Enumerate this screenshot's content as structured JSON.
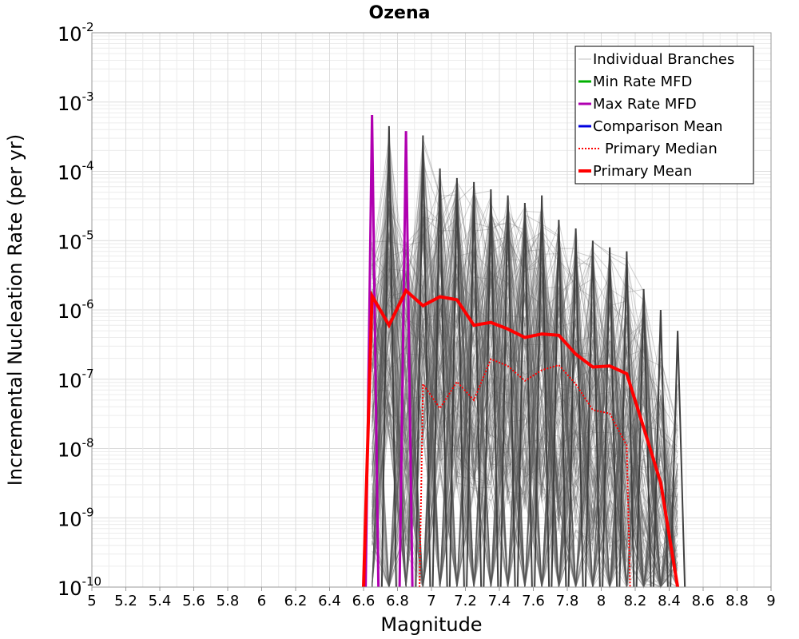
{
  "chart_data": {
    "type": "line",
    "title": "Ozena",
    "xlabel": "Magnitude",
    "ylabel": "Incremental Nucleation Rate (per yr)",
    "xlim": [
      5,
      9
    ],
    "ylim_log10": [
      -10,
      -2
    ],
    "y_scale": "log",
    "x_ticks": [
      "5",
      "5.2",
      "5.4",
      "5.6",
      "5.8",
      "6",
      "6.2",
      "6.4",
      "6.6",
      "6.8",
      "7",
      "7.2",
      "7.4",
      "7.6",
      "7.8",
      "8",
      "8.2",
      "8.4",
      "8.6",
      "8.8",
      "9"
    ],
    "y_ticks": [
      {
        "base": "10",
        "exp": "-2",
        "log": -2
      },
      {
        "base": "10",
        "exp": "-3",
        "log": -3
      },
      {
        "base": "10",
        "exp": "-4",
        "log": -4
      },
      {
        "base": "10",
        "exp": "-5",
        "log": -5
      },
      {
        "base": "10",
        "exp": "-6",
        "log": -6
      },
      {
        "base": "10",
        "exp": "-7",
        "log": -7
      },
      {
        "base": "10",
        "exp": "-8",
        "log": -8
      },
      {
        "base": "10",
        "exp": "-9",
        "log": -9
      },
      {
        "base": "10",
        "exp": "-10",
        "log": -10
      }
    ],
    "grid": true,
    "legend_position": "top-right",
    "legend": [
      {
        "label": "Individual Branches",
        "color": "#c0c0c0",
        "style": "solid-thin"
      },
      {
        "label": "Min Rate MFD",
        "color": "#00b000",
        "style": "solid"
      },
      {
        "label": "Max Rate MFD",
        "color": "#b000b0",
        "style": "solid"
      },
      {
        "label": "Comparison Mean",
        "color": "#0000e0",
        "style": "solid"
      },
      {
        "label": "Primary Median",
        "color": "#ff0000",
        "style": "dotted"
      },
      {
        "label": "Primary Mean",
        "color": "#ff0000",
        "style": "solid-thick"
      }
    ],
    "series": [
      {
        "name": "Primary Mean",
        "color": "#ff0000",
        "x": [
          6.65,
          6.75,
          6.85,
          6.95,
          7.05,
          7.15,
          7.25,
          7.35,
          7.45,
          7.55,
          7.65,
          7.75,
          7.85,
          7.95,
          8.05,
          8.15,
          8.25,
          8.35,
          8.45
        ],
        "values": [
          1.6e-06,
          6e-07,
          1.9e-06,
          1.15e-06,
          1.55e-06,
          1.4e-06,
          6e-07,
          6.6e-07,
          5.3e-07,
          4e-07,
          4.5e-07,
          4.3e-07,
          2.3e-07,
          1.5e-07,
          1.55e-07,
          1.2e-07,
          2e-08,
          3.2e-09,
          1e-10
        ]
      },
      {
        "name": "Primary Median",
        "color": "#ff0000",
        "x": [
          6.95,
          7.05,
          7.15,
          7.25,
          7.35,
          7.45,
          7.55,
          7.65,
          7.75,
          7.85,
          7.95,
          8.05,
          8.15,
          8.17
        ],
        "values": [
          8.5e-08,
          3.8e-08,
          9.2e-08,
          5e-08,
          1.95e-07,
          1.55e-07,
          9.5e-08,
          1.35e-07,
          1.6e-07,
          8.5e-08,
          3.6e-08,
          3.2e-08,
          1.1e-08,
          1e-10
        ]
      },
      {
        "name": "Max Rate MFD",
        "color": "#b000b0",
        "x": [
          6.65,
          6.85
        ],
        "values": [
          0.00065,
          0.00038
        ]
      },
      {
        "name": "Individual Branches (envelope max)",
        "color": "#555555",
        "x": [
          6.75,
          6.95,
          7.05,
          7.15,
          7.25,
          7.35,
          7.45,
          7.55,
          7.65,
          7.75,
          7.85,
          7.95,
          8.05,
          8.15,
          8.25,
          8.35,
          8.45
        ],
        "values": [
          0.00045,
          0.00033,
          0.00011,
          8e-05,
          7e-05,
          5.5e-05,
          4.5e-05,
          3.5e-05,
          4.5e-05,
          2e-05,
          1.5e-05,
          1e-05,
          8e-06,
          7e-06,
          2e-06,
          1e-06,
          5e-07
        ]
      }
    ]
  }
}
